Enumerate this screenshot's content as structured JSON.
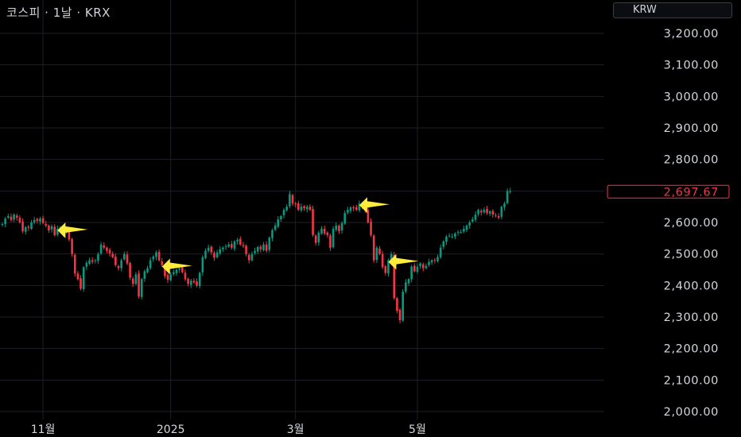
{
  "header": {
    "title": "코스피 · 1날 · KRX",
    "currency_button": "KRW"
  },
  "colors": {
    "up": "#089981",
    "down": "#f23645",
    "marker": "#ffeb3b",
    "grid": "#1c1f26",
    "background": "#000000"
  },
  "chart_data": {
    "type": "candlestick",
    "title": "코스피 · 1날 · KRX",
    "currency": "KRW",
    "ylim": [
      2000,
      3200
    ],
    "y_ticks": [
      2000,
      2100,
      2200,
      2300,
      2400,
      2500,
      2600,
      2700,
      2800,
      2900,
      3000,
      3100,
      3200
    ],
    "y_tick_labels": [
      "2,000.00",
      "2,100.00",
      "2,200.00",
      "2,300.00",
      "2,400.00",
      "2,500.00",
      "2,600.00",
      "2,700.00",
      "2,800.00",
      "2,900.00",
      "3,000.00",
      "3,100.00",
      "3,200.00"
    ],
    "x_tick_labels": [
      "11월",
      "2025",
      "3월",
      "5월"
    ],
    "x_tick_positions": [
      "2024-11-01",
      "2025-01-02",
      "2025-03-04",
      "2025-05-01"
    ],
    "last_price": 2697.67,
    "last_price_label": "2,697.67",
    "series": [
      {
        "name": "KOSPI",
        "closes": [
          2595,
          2612,
          2620,
          2608,
          2625,
          2615,
          2600,
          2572,
          2585,
          2583,
          2600,
          2608,
          2605,
          2612,
          2598,
          2590,
          2575,
          2588,
          2560,
          2580,
          2585,
          2565,
          2575,
          2546,
          2500,
          2438,
          2420,
          2390,
          2458,
          2472,
          2480,
          2475,
          2480,
          2500,
          2530,
          2520,
          2510,
          2502,
          2490,
          2465,
          2455,
          2480,
          2500,
          2470,
          2425,
          2405,
          2435,
          2365,
          2420,
          2445,
          2455,
          2480,
          2492,
          2505,
          2480,
          2465,
          2430,
          2418,
          2435,
          2442,
          2450,
          2455,
          2442,
          2420,
          2405,
          2415,
          2410,
          2400,
          2440,
          2490,
          2510,
          2520,
          2505,
          2488,
          2505,
          2515,
          2520,
          2525,
          2530,
          2520,
          2540,
          2545,
          2530,
          2525,
          2500,
          2480,
          2500,
          2510,
          2522,
          2515,
          2530,
          2510,
          2552,
          2575,
          2590,
          2610,
          2620,
          2640,
          2650,
          2690,
          2660,
          2658,
          2640,
          2650,
          2645,
          2650,
          2640,
          2560,
          2535,
          2568,
          2580,
          2565,
          2560,
          2520,
          2580,
          2590,
          2572,
          2598,
          2630,
          2640,
          2648,
          2645,
          2640,
          2660,
          2650,
          2640,
          2600,
          2560,
          2480,
          2520,
          2500,
          2458,
          2440,
          2480,
          2500,
          2360,
          2320,
          2290,
          2380,
          2410,
          2420,
          2460,
          2445,
          2460,
          2470,
          2455,
          2462,
          2475,
          2480,
          2480,
          2490,
          2520,
          2540,
          2555,
          2558,
          2555,
          2565,
          2570,
          2570,
          2580,
          2590,
          2600,
          2610,
          2625,
          2640,
          2632,
          2640,
          2630,
          2635,
          2625,
          2620,
          2615,
          2650,
          2660,
          2700,
          2700
        ]
      }
    ],
    "markers": [
      {
        "date": "2024-11-08",
        "label": ""
      },
      {
        "date": "2024-12-30",
        "label": ""
      },
      {
        "date": "2025-04-03",
        "label": ""
      },
      {
        "date": "2025-04-17",
        "label": ""
      }
    ]
  }
}
